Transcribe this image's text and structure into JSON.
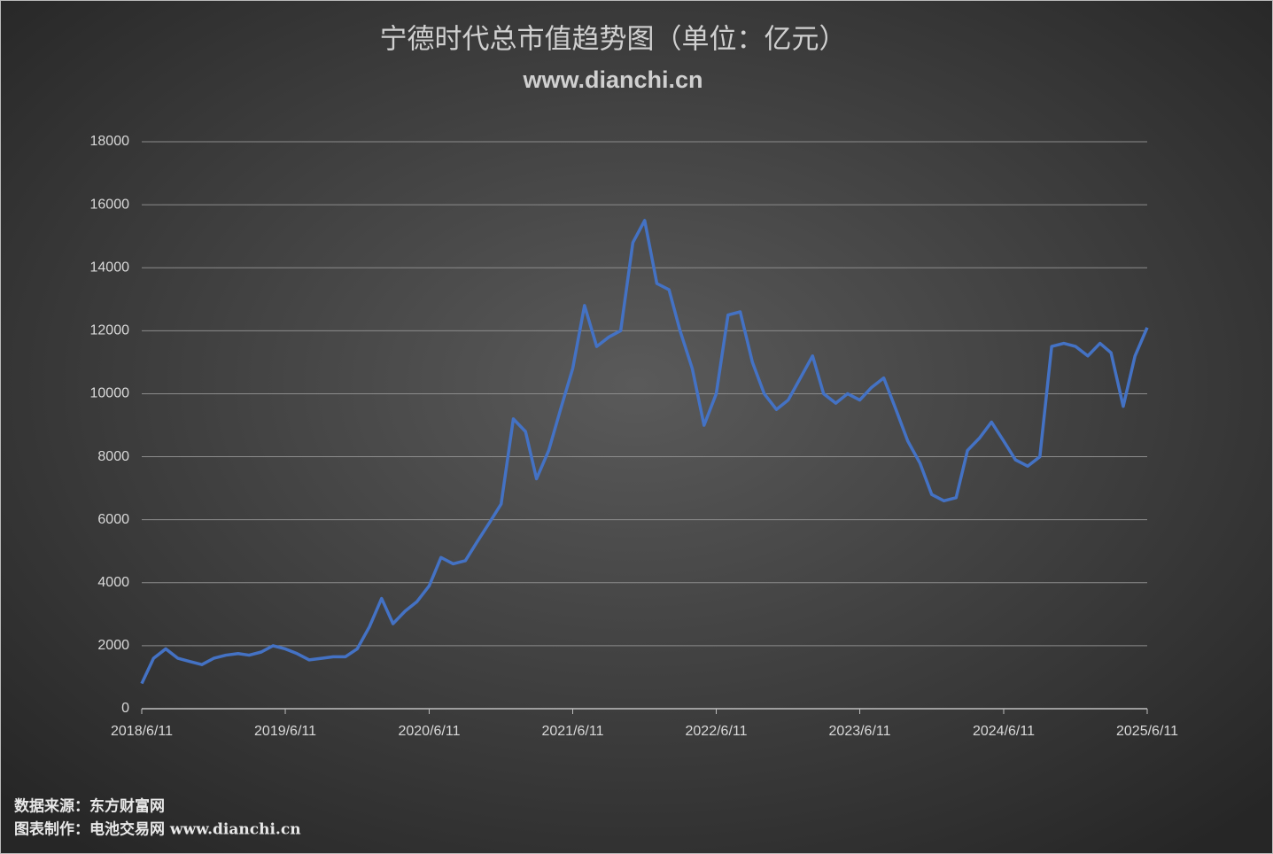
{
  "chart_data": {
    "type": "line",
    "title": "宁德时代总市值趋势图（单位：亿元）",
    "subtitle": "www.dianchi.cn",
    "source": "数据来源：东方财富网",
    "credit": "图表制作：电池交易网 www.dianchi.cn",
    "color": "#4472c4",
    "grid": true,
    "x": [
      "2018/6/11",
      "2018/7/11",
      "2018/8/11",
      "2018/9/11",
      "2018/10/11",
      "2018/11/11",
      "2018/12/11",
      "2019/1/11",
      "2019/2/11",
      "2019/3/11",
      "2019/4/11",
      "2019/5/11",
      "2019/6/11",
      "2019/7/11",
      "2019/8/11",
      "2019/9/11",
      "2019/10/11",
      "2019/11/11",
      "2019/12/11",
      "2020/1/11",
      "2020/2/11",
      "2020/3/11",
      "2020/4/11",
      "2020/5/11",
      "2020/6/11",
      "2020/7/11",
      "2020/8/11",
      "2020/9/11",
      "2020/10/11",
      "2020/11/11",
      "2020/12/11",
      "2021/1/11",
      "2021/2/11",
      "2021/3/11",
      "2021/4/11",
      "2021/5/11",
      "2021/6/11",
      "2021/7/11",
      "2021/8/11",
      "2021/9/11",
      "2021/10/11",
      "2021/11/11",
      "2021/12/11",
      "2022/1/11",
      "2022/2/11",
      "2022/3/11",
      "2022/4/11",
      "2022/5/11",
      "2022/6/11",
      "2022/7/11",
      "2022/8/11",
      "2022/9/11",
      "2022/10/11",
      "2022/11/11",
      "2022/12/11",
      "2023/1/11",
      "2023/2/11",
      "2023/3/11",
      "2023/4/11",
      "2023/5/11",
      "2023/6/11",
      "2023/7/11",
      "2023/8/11",
      "2023/9/11",
      "2023/10/11",
      "2023/11/11",
      "2023/12/11",
      "2024/1/11",
      "2024/2/11",
      "2024/3/11",
      "2024/4/11",
      "2024/5/11",
      "2024/6/11",
      "2024/7/11",
      "2024/8/11",
      "2024/9/11",
      "2024/10/11",
      "2024/11/11",
      "2024/12/11",
      "2025/1/11",
      "2025/2/11",
      "2025/3/11",
      "2025/4/11",
      "2025/5/11",
      "2025/6/11"
    ],
    "values": [
      800,
      1600,
      1900,
      1600,
      1500,
      1400,
      1600,
      1700,
      1750,
      1700,
      1800,
      2000,
      1900,
      1750,
      1550,
      1600,
      1650,
      1650,
      1900,
      2600,
      3500,
      2700,
      3100,
      3400,
      3900,
      4800,
      4600,
      4700,
      5300,
      5900,
      6500,
      9200,
      8800,
      7300,
      8200,
      9500,
      10800,
      12800,
      11500,
      11800,
      12000,
      14800,
      15500,
      13500,
      13300,
      12000,
      10800,
      9000,
      10000,
      12500,
      12600,
      11000,
      10000,
      9500,
      9800,
      10500,
      11200,
      10000,
      9700,
      10000,
      9800,
      10200,
      10500,
      9500,
      8500,
      7800,
      6800,
      6600,
      6700,
      8200,
      8600,
      9100,
      8500,
      7900,
      7700,
      8000,
      11500,
      11600,
      11500,
      11200,
      11600,
      11300,
      9600,
      11200,
      12100
    ],
    "xlim": [
      "2018/6/11",
      "2025/6/11"
    ],
    "xticks": [
      "2018/6/11",
      "2019/6/11",
      "2020/6/11",
      "2021/6/11",
      "2022/6/11",
      "2023/6/11",
      "2024/6/11",
      "2025/6/11"
    ],
    "ylim": [
      0,
      18000
    ],
    "yticks": [
      0,
      2000,
      4000,
      6000,
      8000,
      10000,
      12000,
      14000,
      16000,
      18000
    ]
  }
}
